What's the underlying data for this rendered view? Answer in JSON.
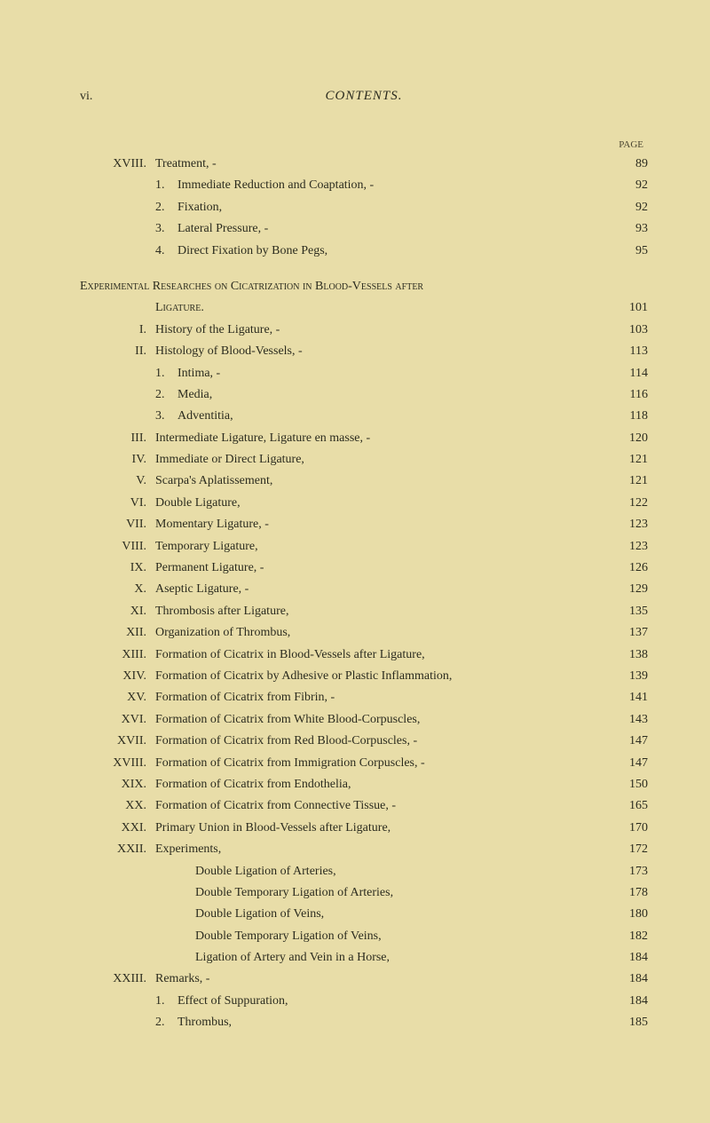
{
  "page_number_left": "vi.",
  "header_title": "CONTENTS.",
  "page_label": "PAGE",
  "colors": {
    "background": "#e8dda8",
    "text": "#2c2c1f"
  },
  "entries": [
    {
      "roman": "XVIII.",
      "text": "Treatment, -",
      "page": "89",
      "type": "main"
    },
    {
      "num": "1.",
      "text": "Immediate Reduction and Coaptation,   -",
      "page": "92",
      "type": "sub"
    },
    {
      "num": "2.",
      "text": "Fixation,",
      "page": "92",
      "type": "sub"
    },
    {
      "num": "3.",
      "text": "Lateral Pressure,   -",
      "page": "93",
      "type": "sub"
    },
    {
      "num": "4.",
      "text": "Direct Fixation by Bone Pegs,",
      "page": "95",
      "type": "sub"
    }
  ],
  "section_header": {
    "line1": "Experimental Researches on Cicatrization in Blood-Vessels after",
    "line2": "Ligature.",
    "page": "101"
  },
  "main_entries": [
    {
      "roman": "I.",
      "text": "History of the Ligature,   -",
      "page": "103"
    },
    {
      "roman": "II.",
      "text": "Histology of Blood-Vessels,   -",
      "page": "113"
    }
  ],
  "histology_subs": [
    {
      "num": "1.",
      "text": "Intima, -",
      "page": "114"
    },
    {
      "num": "2.",
      "text": "Media,",
      "page": "116"
    },
    {
      "num": "3.",
      "text": "Adventitia,",
      "page": "118"
    }
  ],
  "continued_entries": [
    {
      "roman": "III.",
      "text": "Intermediate Ligature, Ligature en masse,  -",
      "page": "120"
    },
    {
      "roman": "IV.",
      "text": "Immediate or Direct Ligature,",
      "page": "121"
    },
    {
      "roman": "V.",
      "text": "Scarpa's Aplatissement,",
      "page": "121"
    },
    {
      "roman": "VI.",
      "text": "Double Ligature,",
      "page": "122"
    },
    {
      "roman": "VII.",
      "text": "Momentary Ligature,  -",
      "page": "123"
    },
    {
      "roman": "VIII.",
      "text": "Temporary Ligature,",
      "page": "123"
    },
    {
      "roman": "IX.",
      "text": "Permanent Ligature,   -",
      "page": "126"
    },
    {
      "roman": "X.",
      "text": "Aseptic Ligature,  -",
      "page": "129"
    },
    {
      "roman": "XI.",
      "text": "Thrombosis after Ligature,",
      "page": "135"
    },
    {
      "roman": "XII.",
      "text": "Organization of Thrombus,",
      "page": "137"
    },
    {
      "roman": "XIII.",
      "text": "Formation of Cicatrix in Blood-Vessels after Ligature,",
      "page": "138"
    },
    {
      "roman": "XIV.",
      "text": "Formation of Cicatrix by Adhesive or Plastic Inflammation,",
      "page": "139"
    },
    {
      "roman": "XV.",
      "text": "Formation of Cicatrix from Fibrin,  -",
      "page": "141"
    },
    {
      "roman": "XVI.",
      "text": "Formation of Cicatrix from White Blood-Corpuscles,",
      "page": "143"
    },
    {
      "roman": "XVII.",
      "text": "Formation of Cicatrix from Red Blood-Corpuscles, -",
      "page": "147"
    },
    {
      "roman": "XVIII.",
      "text": "Formation of Cicatrix from Immigration Corpuscles,  -",
      "page": "147"
    },
    {
      "roman": "XIX.",
      "text": "Formation of Cicatrix from Endothelia,",
      "page": "150"
    },
    {
      "roman": "XX.",
      "text": "Formation of Cicatrix from Connective Tissue, -",
      "page": "165"
    },
    {
      "roman": "XXI.",
      "text": "Primary Union in Blood-Vessels after Ligature,",
      "page": "170"
    },
    {
      "roman": "XXII.",
      "text": "Experiments,",
      "page": "172"
    }
  ],
  "experiments_subs": [
    {
      "text": "Double Ligation of Arteries,",
      "page": "173"
    },
    {
      "text": "Double Temporary Ligation of Arteries,",
      "page": "178"
    },
    {
      "text": "Double Ligation of Veins,",
      "page": "180"
    },
    {
      "text": "Double Temporary Ligation of Veins,",
      "page": "182"
    },
    {
      "text": "Ligation of Artery and Vein in a Horse,",
      "page": "184"
    }
  ],
  "remarks_entry": {
    "roman": "XXIII.",
    "text": "Remarks,  -",
    "page": "184"
  },
  "remarks_subs": [
    {
      "num": "1.",
      "text": "Effect of Suppuration,",
      "page": "184"
    },
    {
      "num": "2.",
      "text": "Thrombus,",
      "page": "185"
    }
  ]
}
